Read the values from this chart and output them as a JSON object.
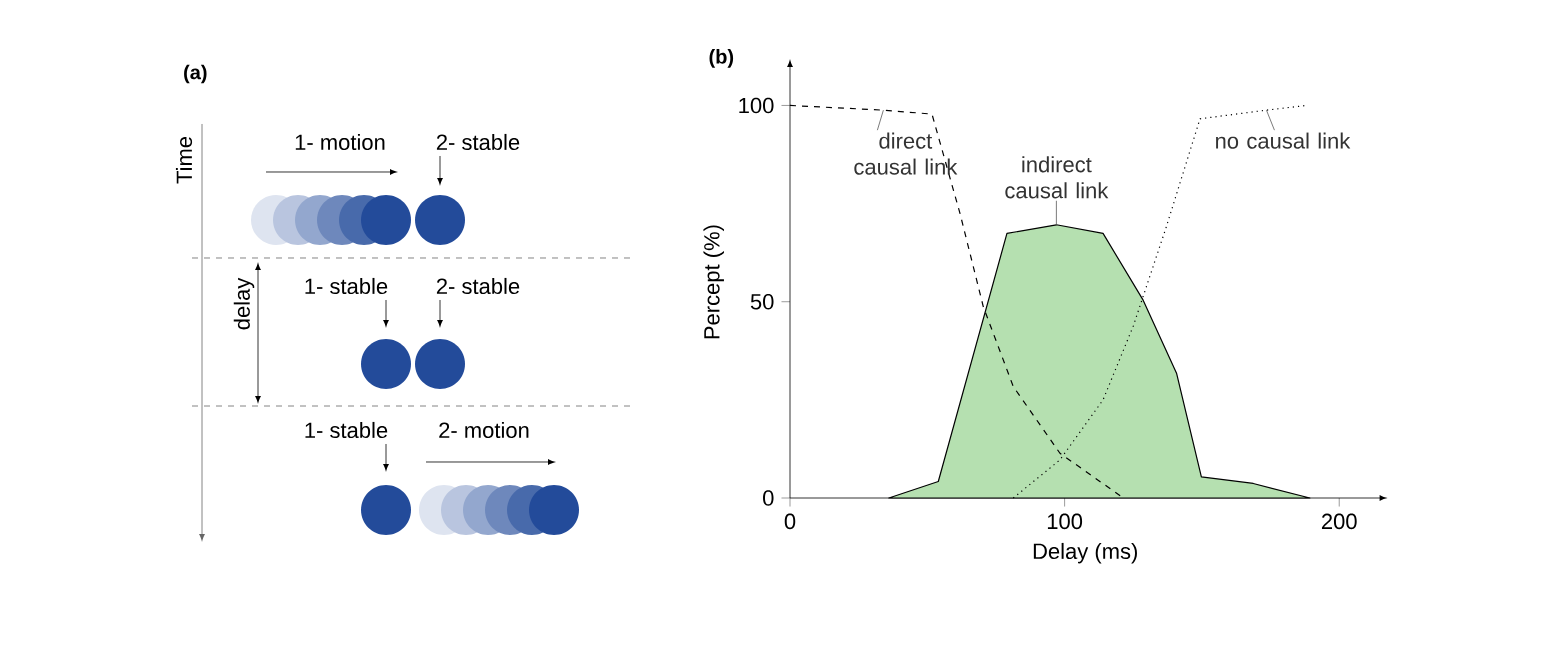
{
  "chart_data": [
    {
      "type": "other",
      "title": "(a)",
      "annotations": [
        "Time",
        "1- motion",
        "2- stable",
        "1- stable",
        "2- stable",
        "delay",
        "1- stable",
        "2- motion"
      ]
    },
    {
      "type": "line",
      "title": "(b)",
      "xlabel": "Delay (ms)",
      "ylabel": "Percept (%)",
      "xlim": [
        0,
        215
      ],
      "ylim": [
        0,
        110
      ],
      "xticks": [
        0,
        100,
        200
      ],
      "yticks": [
        0,
        50,
        100
      ],
      "series": [
        {
          "type": "area",
          "color": "#b5e0b0",
          "line_style": "solid",
          "x": [
            36,
            54,
            79,
            97,
            114,
            128.6,
            140.8,
            149.8,
            168.7,
            189.3
          ],
          "values": [
            0,
            4.2,
            67.4,
            69.6,
            67.4,
            50.4,
            31.7,
            5.4,
            3.7,
            0
          ]
        },
        {
          "type": "line",
          "color": "#000000",
          "line_style": "dashed",
          "x": [
            0,
            34,
            51.7,
            61.9,
            70.4,
            81.3,
            98.3,
            121.4
          ],
          "values": [
            100,
            98.8,
            97.8,
            72.5,
            48.7,
            28.4,
            11.4,
            0
          ]
        },
        {
          "type": "line",
          "color": "#000000",
          "line_style": "dotted",
          "x": [
            81.3,
            98.3,
            114,
            125,
            137,
            149.3,
            173.5,
            188
          ],
          "values": [
            0,
            9.7,
            25,
            43.8,
            69,
            96.6,
            98.8,
            100
          ]
        }
      ],
      "annotations": [
        {
          "text": "direct causal link",
          "x": 34,
          "y": 98.8
        },
        {
          "text": "indirect causal link",
          "x": 97,
          "y": 69.6
        },
        {
          "text": "no causal link",
          "x": 173.5,
          "y": 98.8
        }
      ]
    }
  ]
}
